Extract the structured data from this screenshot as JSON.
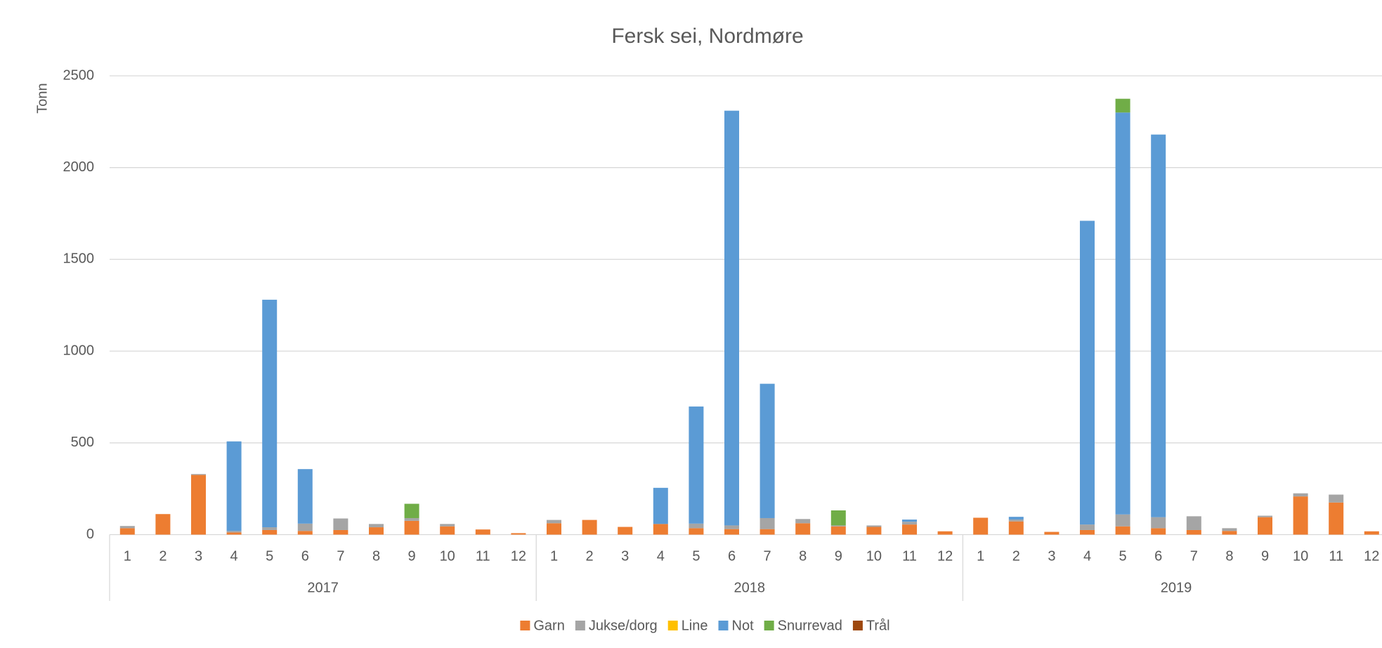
{
  "chart_data": {
    "type": "stacked_bar",
    "title": "Fersk sei, Nordmøre",
    "y_label": "Tonn",
    "categories": [
      "1",
      "2",
      "3",
      "4",
      "5",
      "6",
      "7",
      "8",
      "9",
      "10",
      "11",
      "12",
      "1",
      "2",
      "3",
      "4",
      "5",
      "6",
      "7",
      "8",
      "9",
      "10",
      "11",
      "12",
      "1",
      "2",
      "3",
      "4",
      "5",
      "6",
      "7",
      "8",
      "9",
      "10",
      "11",
      "12"
    ],
    "years": [
      "2017",
      "2018",
      "2019"
    ],
    "ylim": [
      0,
      2500
    ],
    "yticks": [
      0,
      500,
      1000,
      1500,
      2000,
      2500
    ],
    "grid": true,
    "legend": "bottom",
    "series": [
      {
        "name": "Garn",
        "color": "#ED7D31",
        "values": [
          35,
          112,
          325,
          12,
          25,
          20,
          25,
          40,
          75,
          45,
          28,
          8,
          62,
          80,
          42,
          58,
          35,
          30,
          30,
          62,
          45,
          42,
          55,
          18,
          92,
          72,
          15,
          25,
          45,
          35,
          25,
          20,
          95,
          208,
          175,
          18
        ]
      },
      {
        "name": "Jukse/dorg",
        "color": "#A5A5A5",
        "values": [
          12,
          0,
          5,
          8,
          15,
          40,
          63,
          18,
          15,
          13,
          0,
          0,
          18,
          0,
          0,
          0,
          25,
          20,
          60,
          23,
          5,
          8,
          15,
          0,
          0,
          10,
          0,
          30,
          65,
          60,
          75,
          15,
          8,
          17,
          43,
          0
        ]
      },
      {
        "name": "Line",
        "color": "#FFC000",
        "values": [
          0,
          0,
          0,
          0,
          0,
          0,
          0,
          0,
          0,
          0,
          0,
          0,
          0,
          0,
          0,
          0,
          0,
          0,
          0,
          0,
          0,
          0,
          0,
          0,
          0,
          0,
          0,
          0,
          0,
          0,
          0,
          0,
          0,
          0,
          0,
          0
        ]
      },
      {
        "name": "Not",
        "color": "#5B9BD5",
        "values": [
          0,
          0,
          0,
          488,
          1240,
          297,
          0,
          0,
          0,
          0,
          0,
          0,
          0,
          0,
          0,
          197,
          638,
          2260,
          732,
          0,
          0,
          0,
          12,
          0,
          0,
          15,
          0,
          1655,
          2190,
          2085,
          0,
          0,
          0,
          0,
          0,
          0
        ]
      },
      {
        "name": "Snurrevad",
        "color": "#70AD47",
        "values": [
          0,
          0,
          0,
          0,
          0,
          0,
          0,
          0,
          78,
          0,
          0,
          0,
          0,
          0,
          0,
          0,
          0,
          0,
          0,
          0,
          82,
          0,
          0,
          0,
          0,
          0,
          0,
          0,
          75,
          0,
          0,
          0,
          0,
          0,
          0,
          0
        ]
      },
      {
        "name": "Trål",
        "color": "#9E480E",
        "values": [
          0,
          0,
          0,
          0,
          0,
          0,
          0,
          0,
          0,
          0,
          0,
          0,
          0,
          0,
          0,
          0,
          0,
          0,
          0,
          0,
          0,
          0,
          0,
          0,
          0,
          0,
          0,
          0,
          0,
          0,
          0,
          0,
          0,
          0,
          0,
          0
        ]
      }
    ]
  }
}
